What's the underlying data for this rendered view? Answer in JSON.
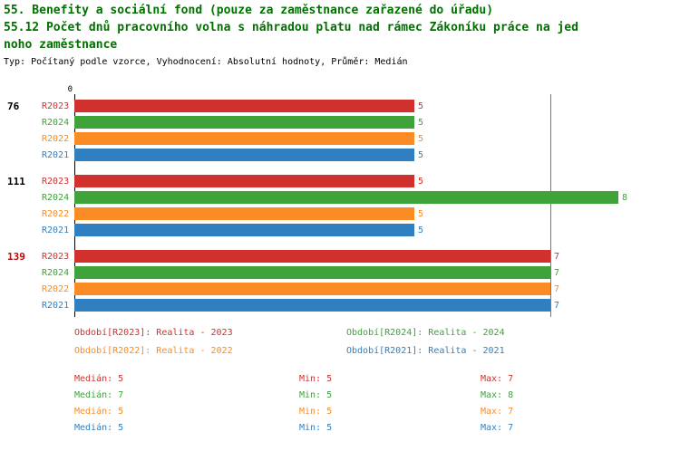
{
  "header": {
    "title_line1": "55. Benefity a sociální fond (pouze za zaměstnance zařazené do úřadu)",
    "title_line2": "55.12 Počet dnů pracovního volna s náhradou platu nad rámec Zákoníku práce na jed",
    "title_line3": "noho zaměstnance",
    "subtitle": "Typ: Počítaný podle vzorce, Vyhodnocení: Absolutní hodnoty, Průměr: Medián"
  },
  "chart_data": {
    "type": "bar",
    "orientation": "horizontal",
    "title": "55.12 Počet dnů pracovního volna s náhradou platu nad rámec Zákoníku práce na jednoho zaměstnance",
    "x_axis": {
      "zero_label": "0",
      "min": 0,
      "max": 8.8,
      "gridline_at": 7,
      "gridline_color": "#3fa33a"
    },
    "series_order": [
      "R2023",
      "R2024",
      "R2022",
      "R2021"
    ],
    "series_colors": {
      "R2023": "#d0312d",
      "R2024": "#3fa33a",
      "R2022": "#fb8b24",
      "R2021": "#2f7fc1"
    },
    "groups": [
      {
        "label": "76",
        "label_color": "#000000",
        "values": {
          "R2023": 5,
          "R2024": 5,
          "R2022": 5,
          "R2021": 5
        }
      },
      {
        "label": "111",
        "label_color": "#000000",
        "values": {
          "R2023": 5,
          "R2024": 8,
          "R2022": 5,
          "R2021": 5
        }
      },
      {
        "label": "139",
        "label_color": "#cc0000",
        "values": {
          "R2023": 7,
          "R2024": 7,
          "R2022": 7,
          "R2021": 7
        }
      }
    ]
  },
  "legend": {
    "items": [
      {
        "label": "Období[R2023]: Realita - 2023",
        "color": "#d0312d"
      },
      {
        "label": "Období[R2024]: Realita - 2024",
        "color": "#3fa33a"
      },
      {
        "label": "Období[R2022]: Realita - 2022",
        "color": "#fb8b24"
      },
      {
        "label": "Období[R2021]: Realita - 2021",
        "color": "#2f7fc1"
      }
    ]
  },
  "stats": {
    "rows": [
      {
        "series": "R2023",
        "color": "#d0312d",
        "median": "Medián: 5",
        "min": "Min: 5",
        "max": "Max: 7"
      },
      {
        "series": "R2024",
        "color": "#3fa33a",
        "median": "Medián: 7",
        "min": "Min: 5",
        "max": "Max: 8"
      },
      {
        "series": "R2022",
        "color": "#fb8b24",
        "median": "Medián: 5",
        "min": "Min: 5",
        "max": "Max: 7"
      },
      {
        "series": "R2021",
        "color": "#2f7fc1",
        "median": "Medián: 5",
        "min": "Min: 5",
        "max": "Max: 7"
      }
    ]
  }
}
